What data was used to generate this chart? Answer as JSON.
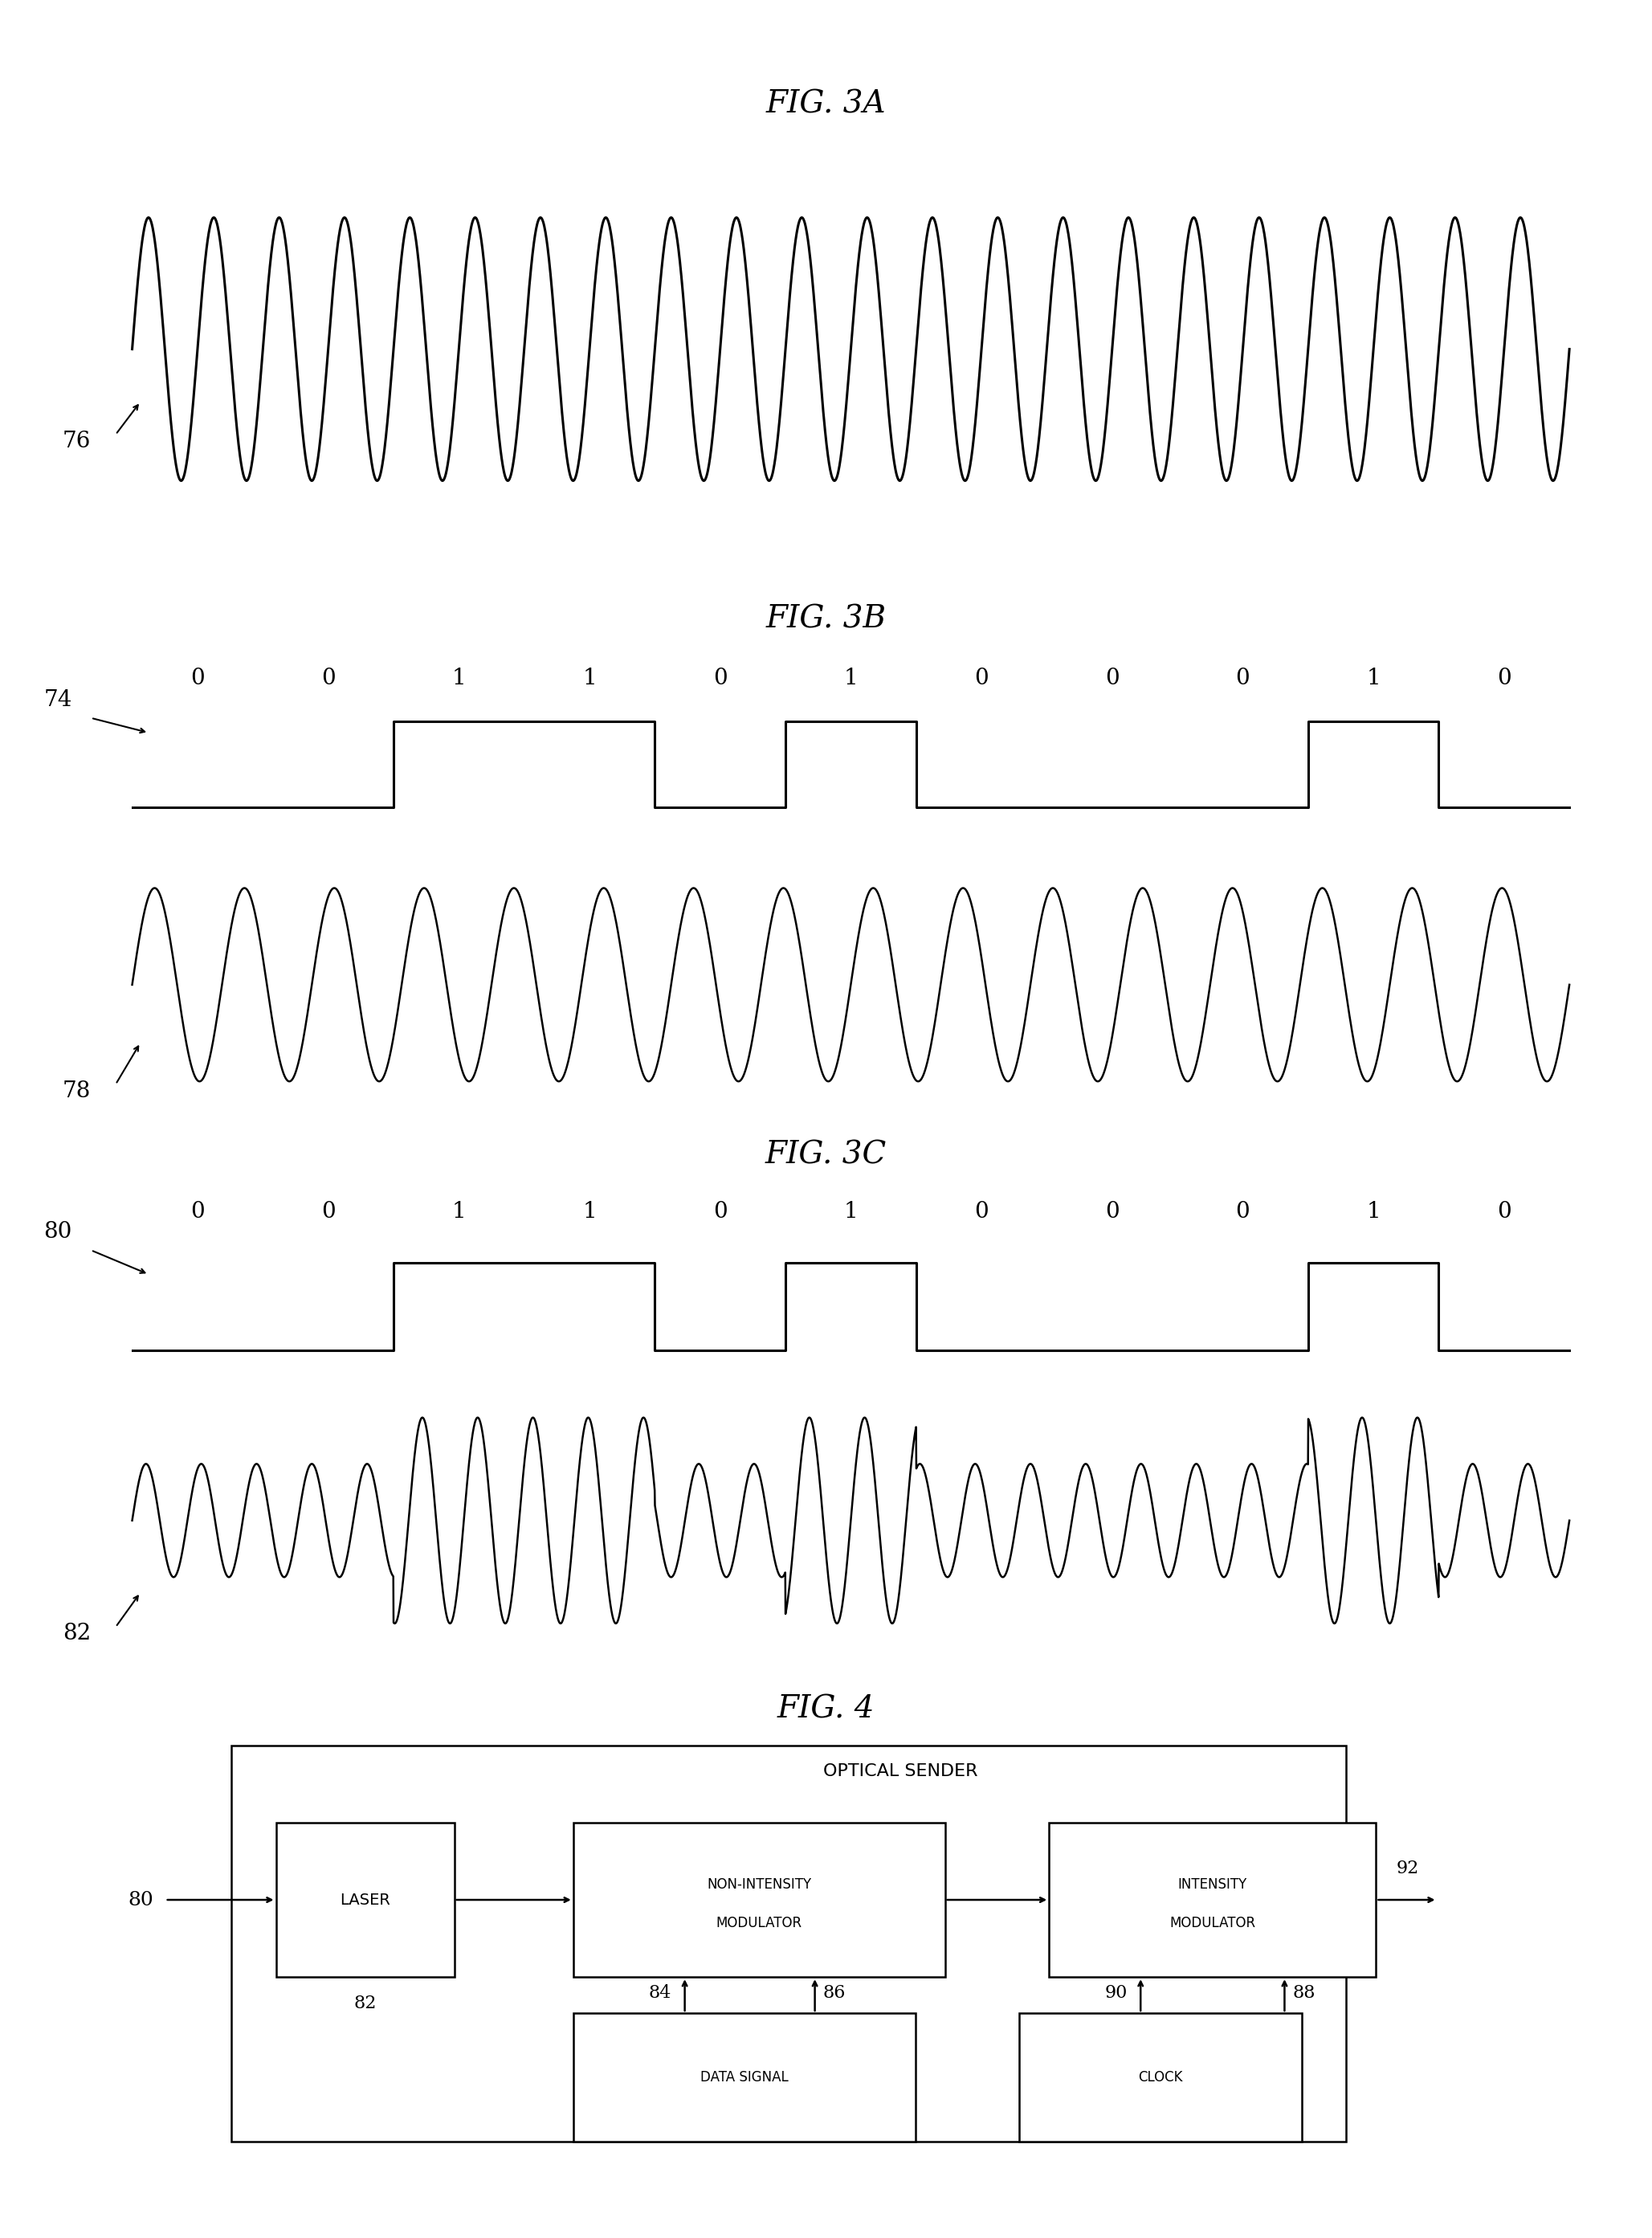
{
  "fig3a_title": "FIG. 3A",
  "fig3b_title": "FIG. 3B",
  "fig3c_title": "FIG. 3C",
  "fig4_title": "FIG. 4",
  "label_76": "76",
  "label_74": "74",
  "label_78": "78",
  "label_80_3c": "80",
  "label_82_3c": "82",
  "label_80_4": "80",
  "bits": [
    0,
    0,
    1,
    1,
    0,
    1,
    0,
    0,
    0,
    1,
    0
  ],
  "fig3a_freq": 22,
  "fig3b_sine_freq": 16,
  "fig3c_optical_freq": 26,
  "line_color": "#000000",
  "bg_color": "#ffffff",
  "optical_sender_label": "OPTICAL SENDER",
  "laser_label": "LASER",
  "non_intensity_line1": "NON-INTENSITY",
  "non_intensity_line2": "MODULATOR",
  "intensity_line1": "INTENSITY",
  "intensity_line2": "MODULATOR",
  "data_signal_label": "DATA SIGNAL",
  "clock_label": "CLOCK",
  "label_82_4": "82",
  "label_84": "84",
  "label_86": "86",
  "label_88": "88",
  "label_90": "90",
  "label_92": "92"
}
